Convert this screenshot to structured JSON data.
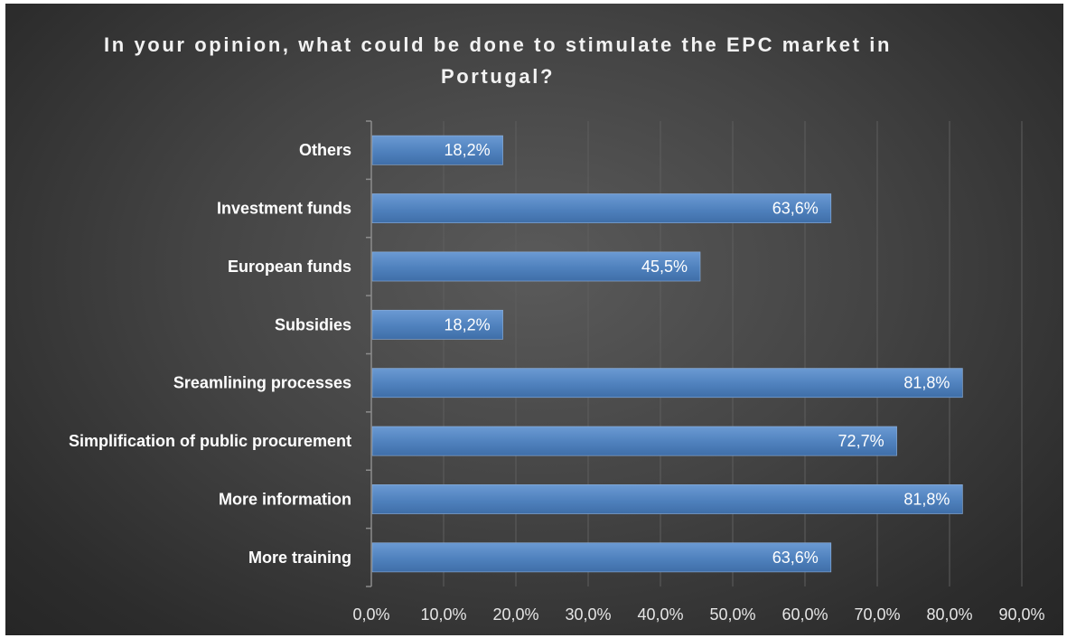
{
  "chart_data": {
    "type": "bar",
    "orientation": "horizontal",
    "title": "In your opinion, what could be done to stimulate the EPC market in Portugal?",
    "categories": [
      "Others",
      "Investment funds",
      "European funds",
      "Subsidies",
      "Sreamlining processes",
      "Simplification of public procurement",
      "More information",
      "More training"
    ],
    "values": [
      18.2,
      63.6,
      45.5,
      18.2,
      81.8,
      72.7,
      81.8,
      63.6
    ],
    "data_labels": [
      "18,2%",
      "63,6%",
      "45,5%",
      "18,2%",
      "81,8%",
      "72,7%",
      "81,8%",
      "63,6%"
    ],
    "xlim": [
      0,
      90
    ],
    "x_ticks": [
      "0,0%",
      "10,0%",
      "20,0%",
      "30,0%",
      "40,0%",
      "50,0%",
      "60,0%",
      "70,0%",
      "80,0%",
      "90,0%"
    ],
    "xlabel": "",
    "ylabel": "",
    "grid": true,
    "legend": "none",
    "colors": {
      "bar": "#4f81bd",
      "bar_top": "#6b9ad3",
      "bar_bottom": "#3f6ea8",
      "background": "#404040",
      "text": "#ffffff",
      "grid": "#5e5e5e",
      "axis": "#8c8c8c"
    }
  }
}
